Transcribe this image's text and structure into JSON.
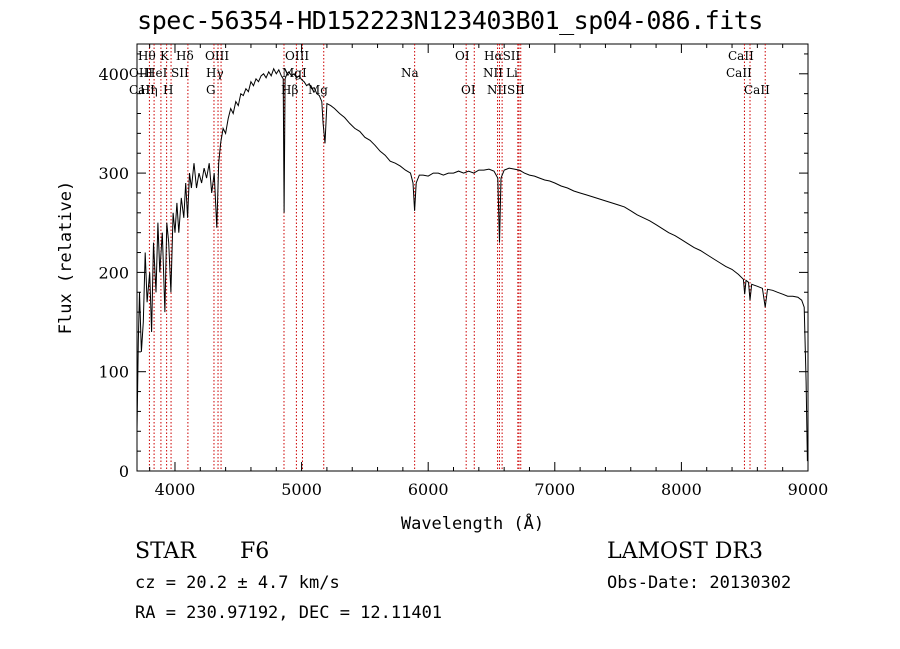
{
  "title": "spec-56354-HD152223N123403B01_sp04-086.fits",
  "info": {
    "class": "STAR",
    "subclass": "F6",
    "survey": "LAMOST DR3",
    "cz": "cz = 20.2 ± 4.7 km/s",
    "obs_date": "Obs-Date: 20130302",
    "coords": "RA = 230.97192, DEC =  12.11401"
  },
  "colors": {
    "line_marker": "#cc0000",
    "spectrum": "#000000"
  },
  "chart_data": {
    "type": "line",
    "title": "spec-56354-HD152223N123403B01_sp04-086.fits",
    "xlabel": "Wavelength (Å)",
    "ylabel": "Flux (relative)",
    "xlim": [
      3700,
      9000
    ],
    "ylim": [
      0,
      430
    ],
    "grid": false,
    "x_ticks": [
      4000,
      5000,
      6000,
      7000,
      8000,
      9000
    ],
    "y_ticks": [
      0,
      100,
      200,
      300,
      400
    ],
    "series": [
      {
        "values": [
          [
            3700,
            40
          ],
          [
            3710,
            130
          ],
          [
            3720,
            180
          ],
          [
            3735,
            120
          ],
          [
            3750,
            150
          ],
          [
            3765,
            220
          ],
          [
            3780,
            170
          ],
          [
            3800,
            200
          ],
          [
            3815,
            140
          ],
          [
            3830,
            230
          ],
          [
            3850,
            180
          ],
          [
            3865,
            250
          ],
          [
            3880,
            200
          ],
          [
            3900,
            240
          ],
          [
            3920,
            160
          ],
          [
            3935,
            250
          ],
          [
            3950,
            230
          ],
          [
            3968,
            180
          ],
          [
            3985,
            260
          ],
          [
            4000,
            240
          ],
          [
            4015,
            270
          ],
          [
            4030,
            240
          ],
          [
            4050,
            275
          ],
          [
            4070,
            255
          ],
          [
            4085,
            290
          ],
          [
            4100,
            255
          ],
          [
            4115,
            300
          ],
          [
            4130,
            285
          ],
          [
            4150,
            310
          ],
          [
            4170,
            285
          ],
          [
            4190,
            300
          ],
          [
            4210,
            290
          ],
          [
            4230,
            305
          ],
          [
            4250,
            295
          ],
          [
            4270,
            310
          ],
          [
            4290,
            280
          ],
          [
            4310,
            300
          ],
          [
            4330,
            245
          ],
          [
            4345,
            310
          ],
          [
            4360,
            330
          ],
          [
            4380,
            345
          ],
          [
            4400,
            340
          ],
          [
            4420,
            355
          ],
          [
            4440,
            365
          ],
          [
            4460,
            360
          ],
          [
            4480,
            372
          ],
          [
            4500,
            368
          ],
          [
            4520,
            380
          ],
          [
            4540,
            378
          ],
          [
            4560,
            385
          ],
          [
            4580,
            382
          ],
          [
            4600,
            392
          ],
          [
            4620,
            388
          ],
          [
            4640,
            395
          ],
          [
            4660,
            392
          ],
          [
            4680,
            398
          ],
          [
            4700,
            400
          ],
          [
            4720,
            396
          ],
          [
            4740,
            402
          ],
          [
            4760,
            398
          ],
          [
            4780,
            405
          ],
          [
            4800,
            400
          ],
          [
            4820,
            404
          ],
          [
            4840,
            398
          ],
          [
            4855,
            395
          ],
          [
            4862,
            260
          ],
          [
            4870,
            395
          ],
          [
            4885,
            400
          ],
          [
            4900,
            402
          ],
          [
            4920,
            398
          ],
          [
            4940,
            400
          ],
          [
            4960,
            396
          ],
          [
            4980,
            398
          ],
          [
            5000,
            394
          ],
          [
            5020,
            392
          ],
          [
            5040,
            388
          ],
          [
            5060,
            390
          ],
          [
            5080,
            385
          ],
          [
            5100,
            386
          ],
          [
            5120,
            380
          ],
          [
            5140,
            378
          ],
          [
            5160,
            372
          ],
          [
            5170,
            350
          ],
          [
            5185,
            330
          ],
          [
            5200,
            370
          ],
          [
            5230,
            368
          ],
          [
            5260,
            365
          ],
          [
            5300,
            360
          ],
          [
            5340,
            356
          ],
          [
            5380,
            350
          ],
          [
            5420,
            345
          ],
          [
            5460,
            342
          ],
          [
            5500,
            336
          ],
          [
            5540,
            333
          ],
          [
            5580,
            328
          ],
          [
            5620,
            322
          ],
          [
            5660,
            318
          ],
          [
            5700,
            312
          ],
          [
            5740,
            310
          ],
          [
            5780,
            307
          ],
          [
            5820,
            303
          ],
          [
            5860,
            300
          ],
          [
            5880,
            290
          ],
          [
            5893,
            262
          ],
          [
            5905,
            290
          ],
          [
            5930,
            298
          ],
          [
            5960,
            298
          ],
          [
            6000,
            297
          ],
          [
            6040,
            300
          ],
          [
            6080,
            300
          ],
          [
            6120,
            298
          ],
          [
            6160,
            300
          ],
          [
            6200,
            300
          ],
          [
            6240,
            302
          ],
          [
            6280,
            300
          ],
          [
            6320,
            302
          ],
          [
            6360,
            300
          ],
          [
            6400,
            303
          ],
          [
            6440,
            303
          ],
          [
            6480,
            304
          ],
          [
            6520,
            302
          ],
          [
            6550,
            295
          ],
          [
            6563,
            230
          ],
          [
            6575,
            295
          ],
          [
            6600,
            303
          ],
          [
            6640,
            305
          ],
          [
            6680,
            304
          ],
          [
            6720,
            303
          ],
          [
            6760,
            300
          ],
          [
            6800,
            298
          ],
          [
            6840,
            297
          ],
          [
            6880,
            295
          ],
          [
            6920,
            293
          ],
          [
            6960,
            292
          ],
          [
            7000,
            290
          ],
          [
            7050,
            287
          ],
          [
            7100,
            285
          ],
          [
            7150,
            282
          ],
          [
            7200,
            280
          ],
          [
            7250,
            278
          ],
          [
            7300,
            276
          ],
          [
            7350,
            274
          ],
          [
            7400,
            272
          ],
          [
            7450,
            270
          ],
          [
            7500,
            268
          ],
          [
            7550,
            266
          ],
          [
            7600,
            262
          ],
          [
            7650,
            258
          ],
          [
            7700,
            255
          ],
          [
            7750,
            252
          ],
          [
            7800,
            248
          ],
          [
            7850,
            244
          ],
          [
            7900,
            240
          ],
          [
            7950,
            237
          ],
          [
            8000,
            233
          ],
          [
            8050,
            229
          ],
          [
            8100,
            225
          ],
          [
            8150,
            222
          ],
          [
            8200,
            218
          ],
          [
            8250,
            214
          ],
          [
            8300,
            210
          ],
          [
            8350,
            206
          ],
          [
            8400,
            203
          ],
          [
            8450,
            198
          ],
          [
            8490,
            193
          ],
          [
            8500,
            178
          ],
          [
            8510,
            192
          ],
          [
            8530,
            190
          ],
          [
            8542,
            172
          ],
          [
            8555,
            188
          ],
          [
            8600,
            186
          ],
          [
            8640,
            184
          ],
          [
            8662,
            165
          ],
          [
            8680,
            183
          ],
          [
            8720,
            182
          ],
          [
            8760,
            180
          ],
          [
            8800,
            178
          ],
          [
            8840,
            176
          ],
          [
            8880,
            176
          ],
          [
            8920,
            175
          ],
          [
            8950,
            172
          ],
          [
            8970,
            165
          ],
          [
            8985,
            90
          ],
          [
            8995,
            10
          ]
        ]
      }
    ],
    "line_markers": [
      {
        "wavelength": 3798,
        "label": "",
        "row": 0
      },
      {
        "wavelength": 3835,
        "label": "Hθ",
        "row": 0
      },
      {
        "wavelength": 3889,
        "label": "",
        "row": 0
      },
      {
        "wavelength": 3934,
        "label": "K",
        "row": 0
      },
      {
        "wavelength": 3969,
        "label": "",
        "row": 0
      },
      {
        "wavelength": 4102,
        "label": "Hδ",
        "row": 0
      },
      {
        "wavelength": 4308,
        "label": "",
        "row": 0
      },
      {
        "wavelength": 4340,
        "label": "",
        "row": 0
      },
      {
        "wavelength": 4364,
        "label": "",
        "row": 0
      },
      {
        "wavelength": 4861,
        "label": "",
        "row": 0
      },
      {
        "wavelength": 4959,
        "label": "",
        "row": 0
      },
      {
        "wavelength": 5007,
        "label": "",
        "row": 0
      },
      {
        "wavelength": 5175,
        "label": "",
        "row": 0
      },
      {
        "wavelength": 5893,
        "label": "Na",
        "row": 1
      },
      {
        "wavelength": 6300,
        "label": "OI",
        "row": 0
      },
      {
        "wavelength": 6364,
        "label": "OI",
        "row": 2
      },
      {
        "wavelength": 6548,
        "label": "",
        "row": 0
      },
      {
        "wavelength": 6563,
        "label": "",
        "row": 0
      },
      {
        "wavelength": 6584,
        "label": "NII",
        "row": 2
      },
      {
        "wavelength": 6708,
        "label": "Li",
        "row": 1
      },
      {
        "wavelength": 6717,
        "label": "",
        "row": 0
      },
      {
        "wavelength": 6731,
        "label": "SII",
        "row": 2
      },
      {
        "wavelength": 8498,
        "label": "CaII",
        "row": 0
      },
      {
        "wavelength": 8542,
        "label": "CaII",
        "row": 1
      },
      {
        "wavelength": 8662,
        "label": "CaII",
        "row": 2
      }
    ],
    "line_label_texts": {
      "row0": [
        "Hθ",
        "K",
        "Hδ",
        "OIII",
        "OIII",
        "OI",
        "HαSII",
        "CaII"
      ],
      "row1": [
        "OIII",
        "HeI",
        "SII",
        "Hγ",
        "MgI",
        "Na",
        "NII",
        "Li",
        "CaII"
      ],
      "row2": [
        "CaII",
        "Hη",
        "H",
        "G",
        "Hβ",
        "Mg",
        "OI",
        "NII",
        "SII",
        "CaII"
      ]
    }
  }
}
